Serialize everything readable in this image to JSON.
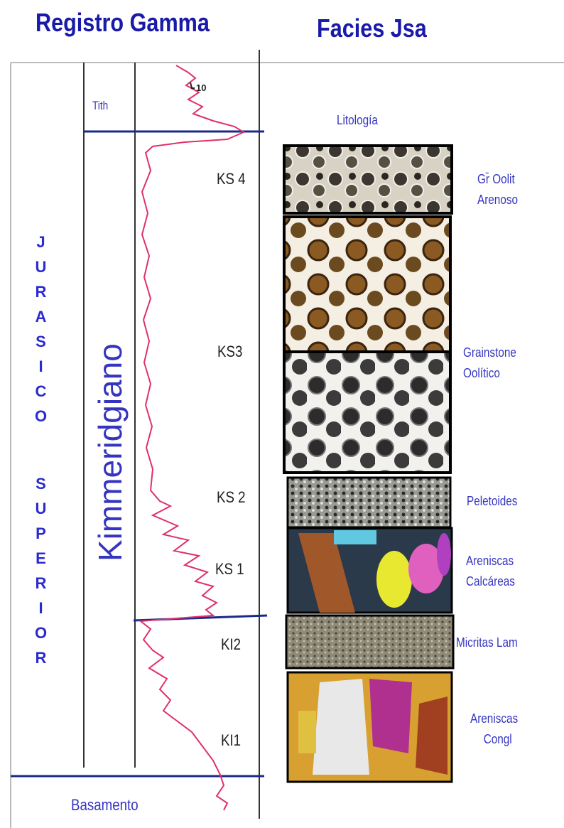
{
  "header": {
    "left_title": "Registro Gamma",
    "right_title": "Facies Jsa"
  },
  "log": {
    "tith": "Tith",
    "scale": "10",
    "litologia": "Litología",
    "units": [
      "KS 4",
      "KS3",
      "KS 2",
      "KS 1",
      "KI2",
      "KI1"
    ],
    "basamento": "Basamento",
    "period": [
      "JURASICO",
      "SUPERIOR"
    ],
    "stage": "Kimmeridgiano"
  },
  "facies": [
    {
      "lines": [
        "Gr̄ Oolit",
        "Arenoso"
      ]
    },
    {
      "lines": [
        "Grainstone",
        "Oolítico"
      ]
    },
    {
      "lines": [
        "Peletoides"
      ]
    },
    {
      "lines": [
        "Areniscas",
        "Calcáreas"
      ]
    },
    {
      "lines": [
        "Micritas Lam"
      ]
    },
    {
      "lines": [
        "Areniscas",
        "Congl"
      ]
    }
  ]
}
